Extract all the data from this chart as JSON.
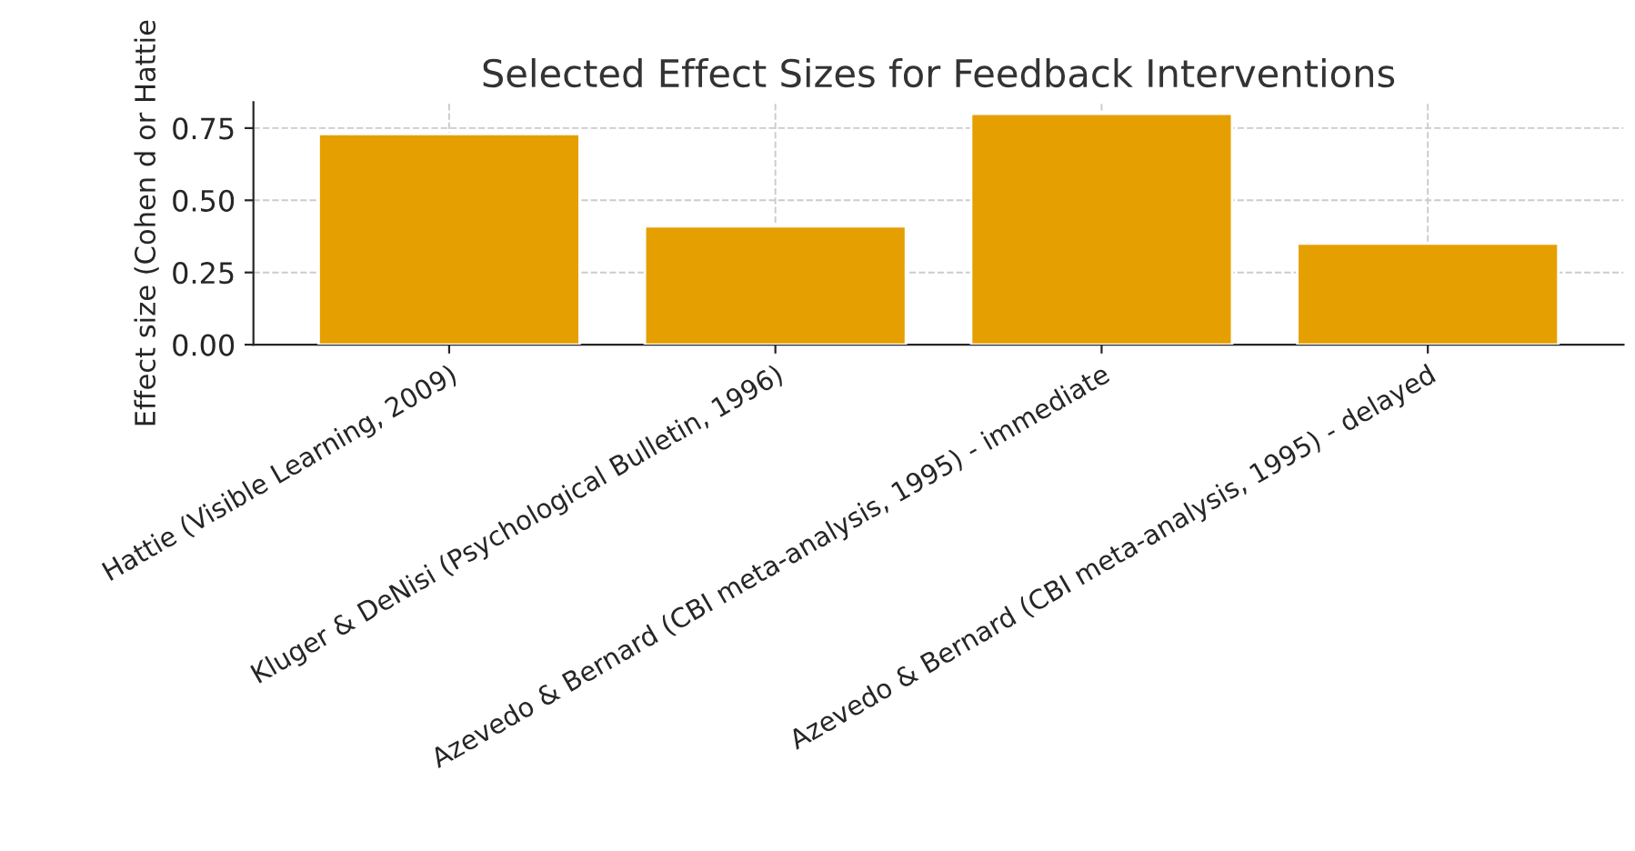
{
  "chart_data": {
    "type": "bar",
    "title": "Selected Effect Sizes for Feedback Interventions",
    "ylabel": "Effect size (Cohen d or Hattie",
    "categories": [
      "Hattie (Visible Learning, 2009)",
      "Kluger & DeNisi (Psychological Bulletin, 1996)",
      "Azevedo & Bernard (CBI meta-analysis, 1995) - immediate",
      "Azevedo & Bernard (CBI meta-analysis, 1995) - delayed"
    ],
    "values": [
      0.73,
      0.41,
      0.8,
      0.35
    ],
    "color": "#e69f00",
    "ylim": [
      0,
      0.84
    ],
    "yticks": [
      {
        "value": 0,
        "label": "0.00"
      },
      {
        "value": 0.25,
        "label": "0.25"
      },
      {
        "value": 0.5,
        "label": "0.50"
      },
      {
        "value": 0.75,
        "label": "0.75"
      }
    ],
    "grid": true
  }
}
